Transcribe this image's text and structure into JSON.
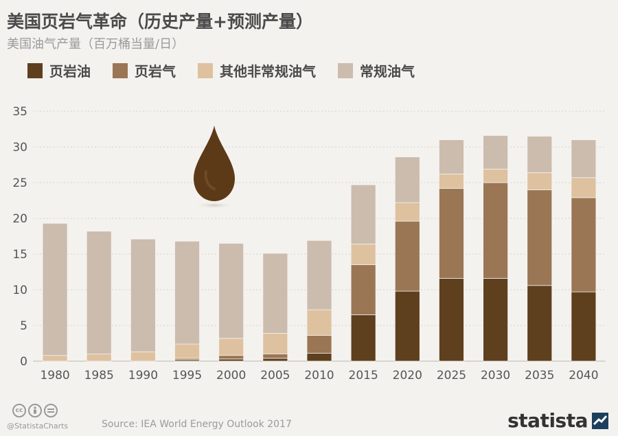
{
  "title": "美国页岩气革命（历史产量+预测产量）",
  "subtitle": "美国油气产量（百万桶当量/日）",
  "colors": {
    "shale_oil": "#5e3f1e",
    "shale_gas": "#9a7655",
    "other_unconventional": "#dec19f",
    "conventional": "#cbbcad"
  },
  "legend": [
    {
      "label": "页岩油",
      "color": "#5e3f1e"
    },
    {
      "label": "页岩气",
      "color": "#9a7655"
    },
    {
      "label": "其他非常规油气",
      "color": "#dec19f"
    },
    {
      "label": "常规油气",
      "color": "#cbbcad"
    }
  ],
  "chart_data": {
    "type": "bar",
    "stacked": true,
    "categories": [
      "1980",
      "1985",
      "1990",
      "1995",
      "2000",
      "2005",
      "2010",
      "2015",
      "2020",
      "2025",
      "2030",
      "2035",
      "2040"
    ],
    "series": [
      {
        "name": "页岩油",
        "values": [
          0,
          0,
          0,
          0.2,
          0.3,
          0.4,
          1.1,
          6.5,
          9.8,
          11.6,
          11.6,
          10.6,
          9.7
        ]
      },
      {
        "name": "页岩气",
        "values": [
          0,
          0,
          0,
          0.2,
          0.5,
          0.6,
          2.5,
          7.0,
          9.8,
          12.6,
          13.4,
          13.4,
          13.2
        ]
      },
      {
        "name": "其他非常规油气",
        "values": [
          0.8,
          1.0,
          1.3,
          2.0,
          2.4,
          2.9,
          3.6,
          2.9,
          2.6,
          2.0,
          1.9,
          2.4,
          2.8
        ]
      },
      {
        "name": "常规油气",
        "values": [
          18.5,
          17.2,
          15.8,
          14.4,
          13.3,
          11.2,
          9.7,
          8.3,
          6.4,
          4.8,
          4.7,
          5.1,
          5.3
        ]
      }
    ],
    "yticks": [
      "0",
      "5",
      "10",
      "15",
      "20",
      "25",
      "30",
      "35"
    ],
    "ylim": [
      0,
      35
    ],
    "grid": true
  },
  "footer": {
    "handle": "@StatistaCharts",
    "source": "Source: IEA World Energy Outlook 2017",
    "brand": "statista",
    "cc_icons": [
      "cc-icon",
      "by-icon",
      "nd-icon"
    ]
  }
}
